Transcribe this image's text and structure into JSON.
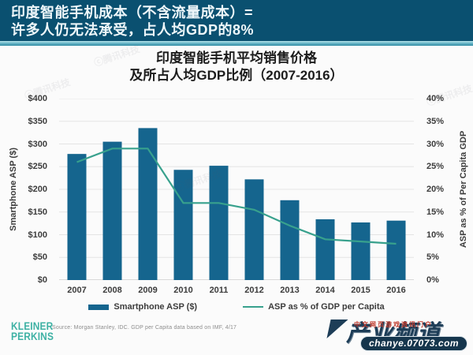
{
  "banner": {
    "line1": "印度智能手机成本（不含流量成本）=",
    "line2": "许多人仍无法承受，占人均GDP的8%"
  },
  "chart_data": {
    "type": "bar",
    "title_lines": [
      "印度智能手机平均销售价格",
      "及所占人均GDP比例（2007-2016）"
    ],
    "categories": [
      "2007",
      "2008",
      "2009",
      "2010",
      "2011",
      "2012",
      "2013",
      "2014",
      "2015",
      "2016"
    ],
    "series": [
      {
        "name": "Smartphone ASP ($)",
        "type": "bar",
        "axis": "left",
        "color": "#15658E",
        "values": [
          278,
          305,
          335,
          243,
          252,
          222,
          176,
          134,
          127,
          131
        ]
      },
      {
        "name": "ASP as % of GDP per Capita",
        "type": "line",
        "axis": "right",
        "color": "#38A18D",
        "values": [
          26,
          29,
          29,
          17,
          17,
          15.5,
          12,
          9,
          8.5,
          8
        ]
      }
    ],
    "left_axis": {
      "label": "Smartphone ASP ($)",
      "min": 0,
      "max": 400,
      "step": 50,
      "prefix": "$"
    },
    "right_axis": {
      "label": "ASP as % of Per Capita GDP",
      "min": 0,
      "max": 40,
      "step": 5,
      "suffix": "%"
    },
    "grid": true,
    "legend_position": "bottom"
  },
  "footer": {
    "logo_line1": "KLEINER",
    "logo_line2": "PERKINS",
    "source": "Source: Morgan Stanley, IDC. GDP per Capita data based on IMF, 4/17"
  },
  "watermark": {
    "red_text": "中文网页游戏资讯门户",
    "main_text": "产业频道",
    "url": "chanye.07073.com"
  },
  "stamp_text": "ⓒ腾讯科技",
  "colors": {
    "banner_bg": "#0a5070",
    "banner_stripe": "#2f8ba3",
    "bar": "#15658E",
    "line": "#38A18D",
    "kleiner_teal": "#3eb1a4",
    "watermark_navy": "#1d3d57",
    "watermark_red": "#c0392b"
  }
}
